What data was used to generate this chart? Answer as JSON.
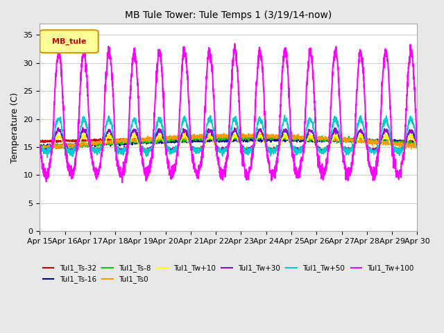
{
  "title": "MB Tule Tower: Tule Temps 1 (3/19/14-now)",
  "ylabel": "Temperature (C)",
  "xlabel": "",
  "ylim": [
    0,
    37
  ],
  "yticks": [
    0,
    5,
    10,
    15,
    20,
    25,
    30,
    35
  ],
  "background_color": "#e8e8e8",
  "plot_bg_color": "#ffffff",
  "legend_box_color": "#ffff99",
  "legend_box_edge": "#cc9900",
  "legend_label": "MB_tule",
  "x_tick_labels": [
    "Apr 15",
    "Apr 16",
    "Apr 17",
    "Apr 18",
    "Apr 19",
    "Apr 20",
    "Apr 21",
    "Apr 22",
    "Apr 23",
    "Apr 24",
    "Apr 25",
    "Apr 26",
    "Apr 27",
    "Apr 28",
    "Apr 29",
    "Apr 30"
  ],
  "series": [
    {
      "label": "Tul1_Ts-32",
      "color": "#cc0000",
      "lw": 1.2
    },
    {
      "label": "Tul1_Ts-16",
      "color": "#000099",
      "lw": 1.2
    },
    {
      "label": "Tul1_Ts-8",
      "color": "#00cc00",
      "lw": 1.2
    },
    {
      "label": "Tul1_Ts0",
      "color": "#ff9900",
      "lw": 1.2
    },
    {
      "label": "Tul1_Tw+10",
      "color": "#ffff00",
      "lw": 1.2
    },
    {
      "label": "Tul1_Tw+30",
      "color": "#9900cc",
      "lw": 1.2
    },
    {
      "label": "Tul1_Tw+50",
      "color": "#00cccc",
      "lw": 1.2
    },
    {
      "label": "Tul1_Tw+100",
      "color": "#ff00ff",
      "lw": 1.5
    }
  ],
  "num_days": 15,
  "base_temp": 15.0
}
